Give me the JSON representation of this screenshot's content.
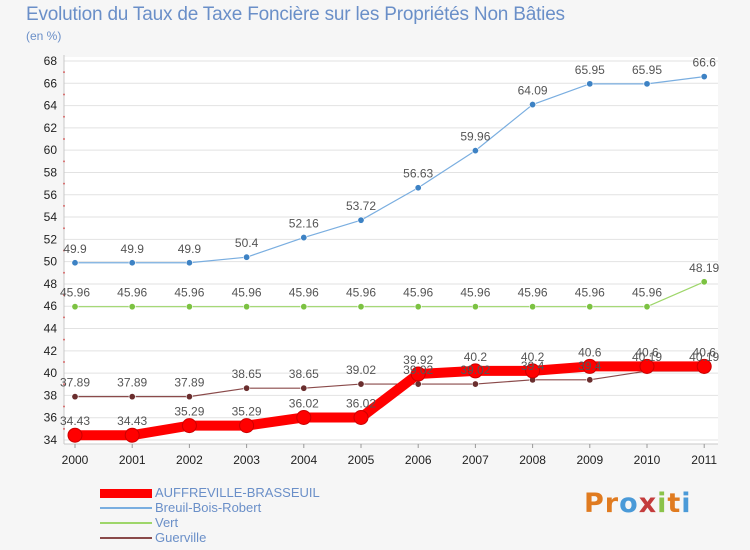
{
  "title": "Evolution du Taux de Taxe Foncière sur les Propriétés Non Bâties",
  "unit_label": "(en %)",
  "logo": {
    "text": "Proxiti",
    "letter_colors": [
      "#e07b20",
      "#e07b20",
      "#4a9ad8",
      "#c43c3c",
      "#8bc34a",
      "#e07b20",
      "#4a9ad8"
    ]
  },
  "chart_data": {
    "type": "line",
    "title": "Evolution du Taux de Taxe Foncière sur les Propriétés Non Bâties",
    "ylabel": "(en %)",
    "xlabel": "",
    "x": [
      "2000",
      "2001",
      "2002",
      "2003",
      "2004",
      "2005",
      "2006",
      "2007",
      "2008",
      "2009",
      "2010",
      "2011"
    ],
    "ylim": [
      34,
      68
    ],
    "yticks": [
      34,
      36,
      38,
      40,
      42,
      44,
      46,
      48,
      50,
      52,
      54,
      56,
      58,
      60,
      62,
      64,
      66,
      68
    ],
    "grid": "horizontal",
    "legend_position": "bottom-left",
    "series": [
      {
        "name": "AUFFREVILLE-BRASSEUIL",
        "color": "#ff0000",
        "emphasis": true,
        "values": [
          34.43,
          34.43,
          35.29,
          35.29,
          36.02,
          36.02,
          39.92,
          40.2,
          40.2,
          40.6,
          40.6,
          40.6
        ],
        "labels": [
          "34.43",
          "34.43",
          "35.29",
          "35.29",
          "36.02",
          "36.02",
          "39.92",
          "40.2",
          "40.2",
          "40.6",
          "40.6",
          "40.6"
        ]
      },
      {
        "name": "Breuil-Bois-Robert",
        "color": "#7aaee0",
        "dot_color": "#3d82c4",
        "values": [
          49.9,
          49.9,
          49.9,
          50.4,
          52.16,
          53.72,
          56.63,
          59.96,
          64.09,
          65.95,
          65.95,
          66.6
        ],
        "labels": [
          "49.9",
          "49.9",
          "49.9",
          "50.4",
          "52.16",
          "53.72",
          "56.63",
          "59.96",
          "64.09",
          "65.95",
          "65.95",
          "66.6"
        ]
      },
      {
        "name": "Vert",
        "color": "#9ed66a",
        "dot_color": "#7cc242",
        "values": [
          45.96,
          45.96,
          45.96,
          45.96,
          45.96,
          45.96,
          45.96,
          45.96,
          45.96,
          45.96,
          45.96,
          48.19
        ],
        "labels": [
          "45.96",
          "45.96",
          "45.96",
          "45.96",
          "45.96",
          "45.96",
          "45.96",
          "45.96",
          "45.96",
          "45.96",
          "45.96",
          "48.19"
        ]
      },
      {
        "name": "Guerville",
        "color": "#8a4a4a",
        "dot_color": "#6a2e2e",
        "values": [
          37.89,
          37.89,
          37.89,
          38.65,
          38.65,
          39.02,
          39.02,
          39.02,
          39.4,
          39.4,
          40.19,
          40.19
        ],
        "labels": [
          "37.89",
          "37.89",
          "37.89",
          "38.65",
          "38.65",
          "39.02",
          "39.02",
          "39.02",
          "39.4",
          "39.4",
          "40.19",
          "40.19"
        ]
      }
    ]
  }
}
